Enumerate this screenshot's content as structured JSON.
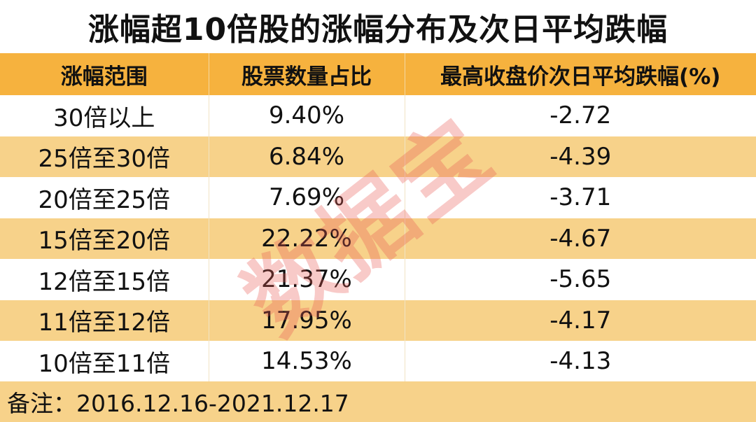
{
  "title": "涨幅超10倍股的涨幅分布及次日平均跌幅",
  "table": {
    "headers": [
      "涨幅范围",
      "股票数量占比",
      "最高收盘价次日平均跌幅(%)"
    ],
    "rows": [
      [
        "30倍以上",
        "9.40%",
        "-2.72"
      ],
      [
        "25倍至30倍",
        "6.84%",
        "-4.39"
      ],
      [
        "20倍至25倍",
        "7.69%",
        "-3.71"
      ],
      [
        "15倍至20倍",
        "22.22%",
        "-4.67"
      ],
      [
        "12倍至15倍",
        "21.37%",
        "-5.65"
      ],
      [
        "11倍至12倍",
        "17.95%",
        "-4.17"
      ],
      [
        "10倍至11倍",
        "14.53%",
        "-4.13"
      ]
    ]
  },
  "footer": "备注：2016.12.16-2021.12.17",
  "watermark": "数据宝",
  "colors": {
    "header_bg": "#F6B23E",
    "stripe_bg": "#F7D28A",
    "watermark": "#E85A54"
  }
}
